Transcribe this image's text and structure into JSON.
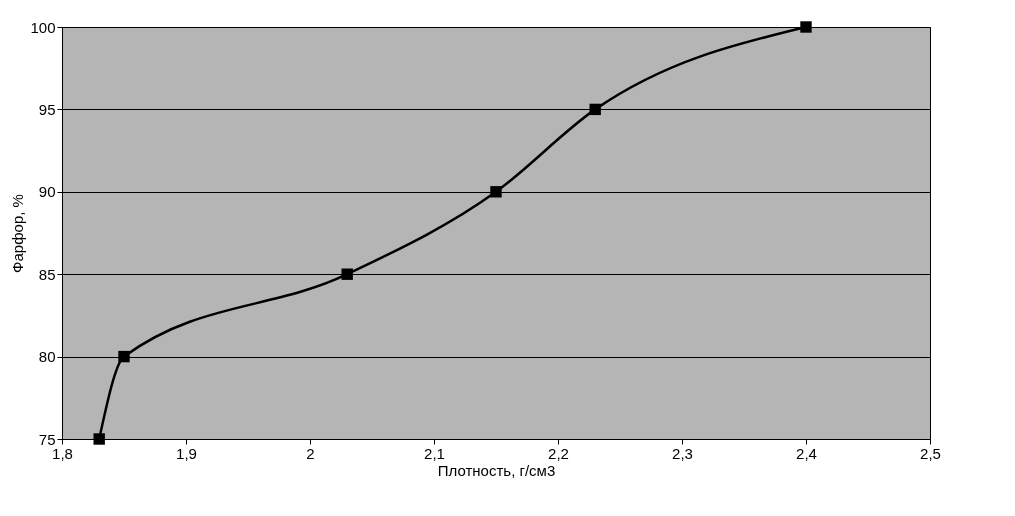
{
  "chart_data": {
    "type": "line",
    "xlabel": "Плотность, г/см3",
    "ylabel": "Фарфор, %",
    "x": [
      1.83,
      1.85,
      2.03,
      2.15,
      2.23,
      2.4
    ],
    "series": [
      {
        "color": "#000000",
        "values": [
          75,
          80,
          85,
          90,
          95,
          100
        ]
      }
    ],
    "xlim": [
      1.8,
      2.5
    ],
    "xticks": [
      {
        "value": 1.8,
        "label": "1,8"
      },
      {
        "value": 1.9,
        "label": "1,9"
      },
      2,
      {
        "value": 2.1,
        "label": "2,1"
      },
      {
        "value": 2.2,
        "label": "2,2"
      },
      {
        "value": 2.3,
        "label": "2,3"
      },
      {
        "value": 2.4,
        "label": "2,4"
      },
      {
        "value": 2.5,
        "label": "2,5"
      }
    ],
    "ylim": [
      75,
      100
    ],
    "yticks": [
      75,
      80,
      85,
      90,
      95,
      100
    ],
    "grid": "y",
    "marker": "square",
    "line_style": "solid",
    "legend": false
  }
}
